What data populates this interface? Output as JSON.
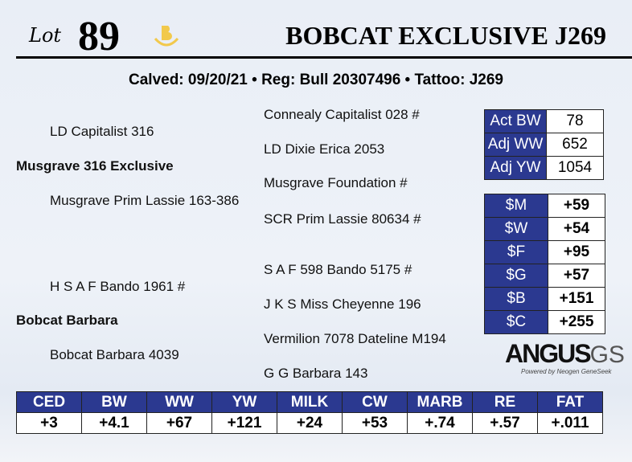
{
  "header": {
    "lot_label": "Lot",
    "lot_number": "89",
    "brand_letter": "B",
    "title": "BOBCAT EXCLUSIVE J269",
    "brand_color": "#f2c94c"
  },
  "info_line": "Calved: 09/20/21 • Reg: Bull 20307496 • Tattoo: J269",
  "pedigree": {
    "sire": "Musgrave 316 Exclusive",
    "sire_sire": "LD Capitalist 316",
    "sire_dam": "Musgrave Prim Lassie 163-386",
    "dam": "Bobcat Barbara",
    "dam_sire": "H S A F Bando 1961 #",
    "dam_dam": "Bobcat Barbara 4039",
    "ggp": [
      "Connealy Capitalist 028 #",
      "LD Dixie Erica 2053",
      "Musgrave Foundation #",
      "SCR Prim Lassie 80634 #",
      "S A F 598 Bando 5175 #",
      "J K S Miss Cheyenne 196",
      "Vermilion 7078 Dateline M194",
      "G G Barbara 143"
    ]
  },
  "performance": [
    {
      "label": "Act BW",
      "value": "78"
    },
    {
      "label": "Adj WW",
      "value": "652"
    },
    {
      "label": "Adj YW",
      "value": "1054"
    }
  ],
  "indexes": [
    {
      "label": "$M",
      "value": "+59"
    },
    {
      "label": "$W",
      "value": "+54"
    },
    {
      "label": "$F",
      "value": "+95"
    },
    {
      "label": "$G",
      "value": "+57"
    },
    {
      "label": "$B",
      "value": "+151"
    },
    {
      "label": "$C",
      "value": "+255"
    }
  ],
  "logo": {
    "text": "ANGUS",
    "suffix": "GS",
    "tagline": "Powered by Neogen GeneSeek"
  },
  "epd": {
    "headers": [
      "CED",
      "BW",
      "WW",
      "YW",
      "MILK",
      "CW",
      "MARB",
      "RE",
      "FAT"
    ],
    "values": [
      "+3",
      "+4.1",
      "+67",
      "+121",
      "+24",
      "+53",
      "+.74",
      "+.57",
      "+.011"
    ]
  },
  "colors": {
    "header_blue": "#2b3990"
  }
}
